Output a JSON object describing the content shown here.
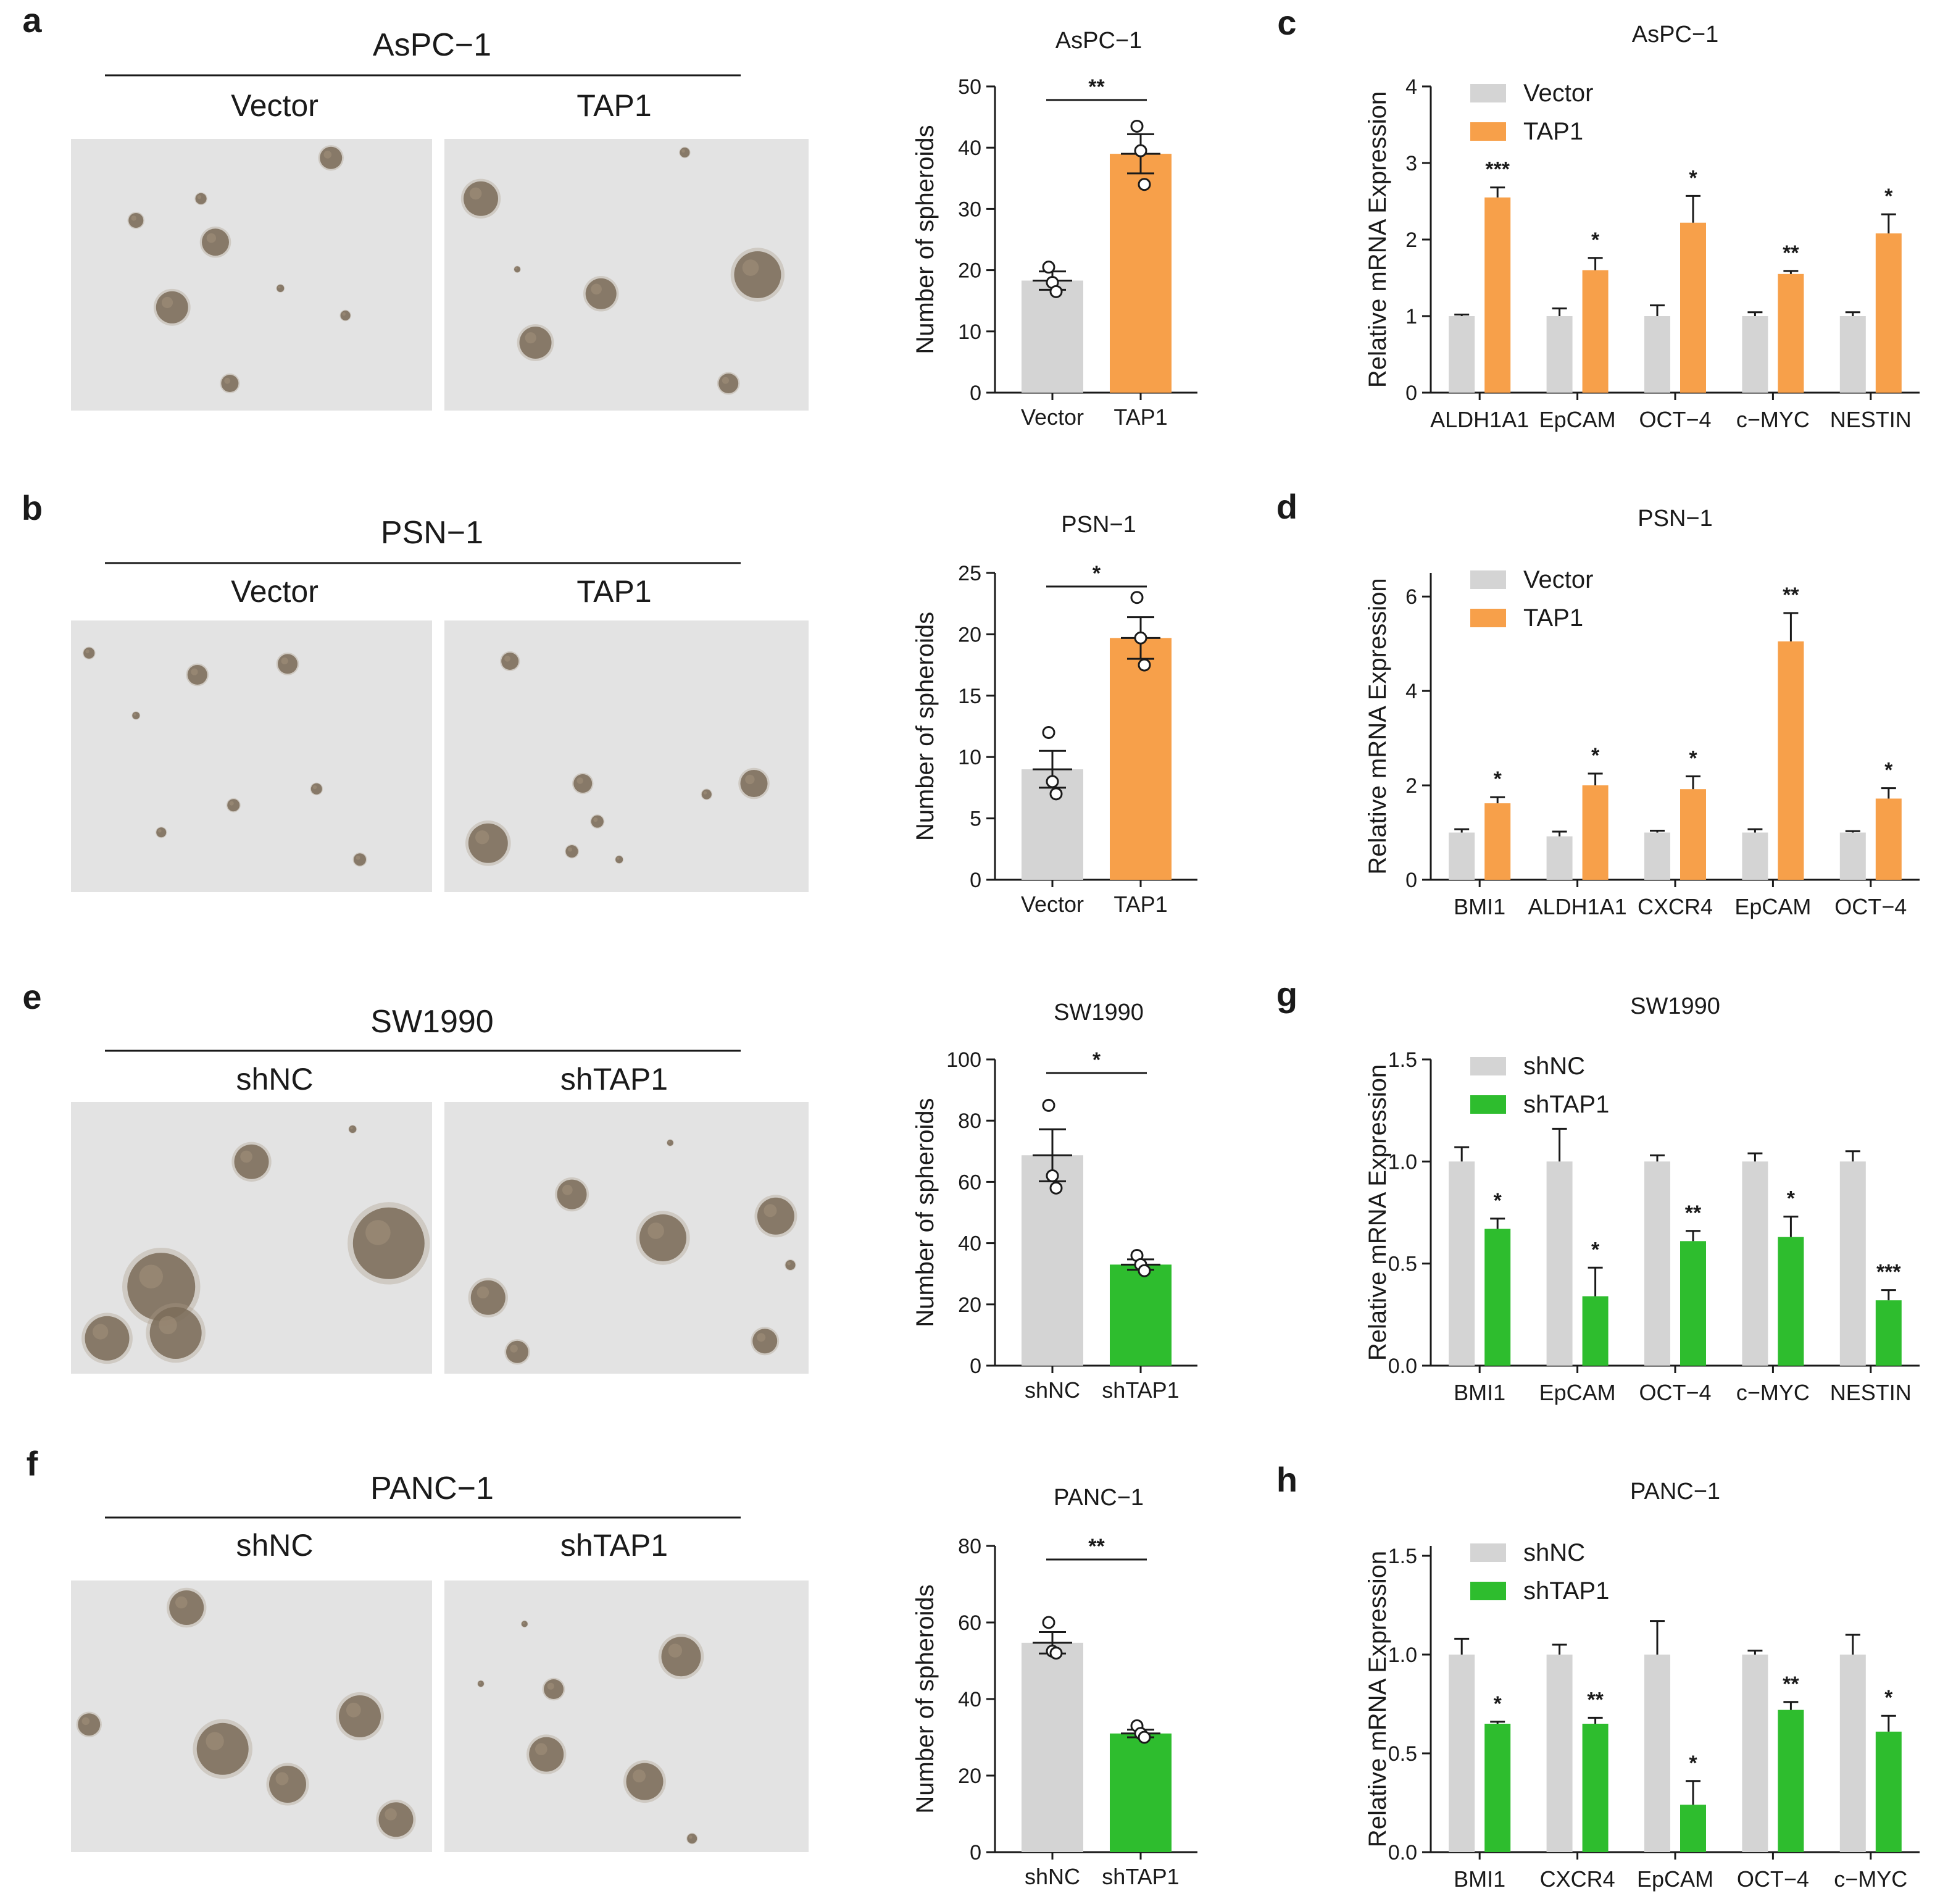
{
  "palette": {
    "control": "#d4d4d4",
    "orange": "#f7a04a",
    "green": "#2ebd2e",
    "axis": "#1a1a1a",
    "micro_bg": "#e3e3e3",
    "spheroid": "#7a6b58"
  },
  "panels": [
    {
      "letter": "a",
      "cell_line": "AsPC−1",
      "groups": [
        "Vector",
        "TAP1"
      ]
    },
    {
      "letter": "b",
      "cell_line": "PSN−1",
      "groups": [
        "Vector",
        "TAP1"
      ]
    },
    {
      "letter": "e",
      "cell_line": "SW1990",
      "groups": [
        "shNC",
        "shTAP1"
      ]
    },
    {
      "letter": "f",
      "cell_line": "PANC−1",
      "groups": [
        "shNC",
        "shTAP1"
      ]
    }
  ],
  "expression_letters": [
    "c",
    "d",
    "g",
    "h"
  ],
  "chart_data": [
    {
      "id": "spheroid-aspc1",
      "type": "bar",
      "title": "AsPC−1",
      "ylabel": "Number of spheroids",
      "categories": [
        "Vector",
        "TAP1"
      ],
      "values": [
        18.3,
        39.0
      ],
      "errors": [
        1.5,
        3.2
      ],
      "points": [
        [
          20.5,
          18.0,
          16.5
        ],
        [
          43.5,
          39.5,
          34.0
        ]
      ],
      "ylim": [
        0,
        50
      ],
      "yticks": [
        "0",
        "10",
        "20",
        "30",
        "40",
        "50"
      ],
      "ytick_values": [
        0,
        10,
        20,
        30,
        40,
        50
      ],
      "colors": [
        "#d4d4d4",
        "#f7a04a"
      ],
      "significance": "**"
    },
    {
      "id": "spheroid-psn1",
      "type": "bar",
      "title": "PSN−1",
      "ylabel": "Number of spheroids",
      "categories": [
        "Vector",
        "TAP1"
      ],
      "values": [
        9.0,
        19.7
      ],
      "errors": [
        1.5,
        1.7
      ],
      "points": [
        [
          12.0,
          8.0,
          7.0
        ],
        [
          23.0,
          19.7,
          17.5
        ]
      ],
      "ylim": [
        0,
        25
      ],
      "yticks": [
        "0",
        "5",
        "10",
        "15",
        "20",
        "25"
      ],
      "ytick_values": [
        0,
        5,
        10,
        15,
        20,
        25
      ],
      "colors": [
        "#d4d4d4",
        "#f7a04a"
      ],
      "significance": "*"
    },
    {
      "id": "spheroid-sw1990",
      "type": "bar",
      "title": "SW1990",
      "ylabel": "Number of spheroids",
      "categories": [
        "shNC",
        "shTAP1"
      ],
      "values": [
        68.7,
        33.0
      ],
      "errors": [
        8.5,
        1.7
      ],
      "points": [
        [
          85.0,
          62.0,
          58.0
        ],
        [
          36.0,
          33.0,
          31.0
        ]
      ],
      "ylim": [
        0,
        100
      ],
      "yticks": [
        "0",
        "20",
        "40",
        "60",
        "80",
        "100"
      ],
      "ytick_values": [
        0,
        20,
        40,
        60,
        80,
        100
      ],
      "colors": [
        "#d4d4d4",
        "#2ebd2e"
      ],
      "significance": "*"
    },
    {
      "id": "spheroid-panc1",
      "type": "bar",
      "title": "PANC−1",
      "ylabel": "Number of spheroids",
      "categories": [
        "shNC",
        "shTAP1"
      ],
      "values": [
        54.7,
        31.0
      ],
      "errors": [
        2.8,
        1.0
      ],
      "points": [
        [
          60.0,
          52.5,
          52.0
        ],
        [
          33.0,
          31.0,
          30.0
        ]
      ],
      "ylim": [
        0,
        80
      ],
      "yticks": [
        "0",
        "20",
        "40",
        "60",
        "80"
      ],
      "ytick_values": [
        0,
        20,
        40,
        60,
        80
      ],
      "colors": [
        "#d4d4d4",
        "#2ebd2e"
      ],
      "significance": "**"
    },
    {
      "id": "expression-aspc1",
      "type": "bar",
      "title": "AsPC−1",
      "ylabel": "Relative mRNA Expression",
      "categories": [
        "ALDH1A1",
        "EpCAM",
        "OCT−4",
        "c−MYC",
        "NESTIN"
      ],
      "series": [
        {
          "name": "Vector",
          "color": "#d4d4d4",
          "values": [
            1.0,
            1.0,
            1.0,
            1.0,
            1.0
          ],
          "errors": [
            0.02,
            0.1,
            0.14,
            0.05,
            0.05
          ]
        },
        {
          "name": "TAP1",
          "color": "#f7a04a",
          "values": [
            2.55,
            1.6,
            2.22,
            1.55,
            2.08
          ],
          "errors": [
            0.13,
            0.16,
            0.35,
            0.04,
            0.25
          ]
        }
      ],
      "significance": [
        "***",
        "*",
        "*",
        "**",
        "*"
      ],
      "ylim": [
        0,
        4
      ],
      "yticks": [
        "0",
        "1",
        "2",
        "3",
        "4"
      ],
      "ytick_values": [
        0,
        1,
        2,
        3,
        4
      ]
    },
    {
      "id": "expression-psn1",
      "type": "bar",
      "title": "PSN−1",
      "ylabel": "Relative mRNA Expression",
      "categories": [
        "BMI1",
        "ALDH1A1",
        "CXCR4",
        "EpCAM",
        "OCT−4"
      ],
      "series": [
        {
          "name": "Vector",
          "color": "#d4d4d4",
          "values": [
            1.0,
            0.92,
            1.0,
            1.0,
            1.0
          ],
          "errors": [
            0.07,
            0.1,
            0.04,
            0.07,
            0.03
          ]
        },
        {
          "name": "TAP1",
          "color": "#f7a04a",
          "values": [
            1.62,
            2.0,
            1.92,
            5.05,
            1.72
          ],
          "errors": [
            0.13,
            0.25,
            0.27,
            0.6,
            0.22
          ]
        }
      ],
      "significance": [
        "*",
        "*",
        "*",
        "**",
        "*"
      ],
      "ylim": [
        0,
        6.5
      ],
      "yticks": [
        "0",
        "2",
        "4",
        "6"
      ],
      "ytick_values": [
        0,
        2,
        4,
        6
      ]
    },
    {
      "id": "expression-sw1990",
      "type": "bar",
      "title": "SW1990",
      "ylabel": "Relative mRNA Expression",
      "categories": [
        "BMI1",
        "EpCAM",
        "OCT−4",
        "c−MYC",
        "NESTIN"
      ],
      "series": [
        {
          "name": "shNC",
          "color": "#d4d4d4",
          "values": [
            1.0,
            1.0,
            1.0,
            1.0,
            1.0
          ],
          "errors": [
            0.07,
            0.16,
            0.03,
            0.04,
            0.05
          ]
        },
        {
          "name": "shTAP1",
          "color": "#2ebd2e",
          "values": [
            0.67,
            0.34,
            0.61,
            0.63,
            0.32
          ],
          "errors": [
            0.05,
            0.14,
            0.05,
            0.1,
            0.05
          ]
        }
      ],
      "significance": [
        "*",
        "*",
        "**",
        "*",
        "***"
      ],
      "ylim": [
        0,
        1.5
      ],
      "yticks": [
        "0.0",
        "0.5",
        "1.0",
        "1.5"
      ],
      "ytick_values": [
        0,
        0.5,
        1.0,
        1.5
      ]
    },
    {
      "id": "expression-panc1",
      "type": "bar",
      "title": "PANC−1",
      "ylabel": "Relative mRNA Expression",
      "categories": [
        "BMI1",
        "CXCR4",
        "EpCAM",
        "OCT−4",
        "c−MYC"
      ],
      "series": [
        {
          "name": "shNC",
          "color": "#d4d4d4",
          "values": [
            1.0,
            1.0,
            1.0,
            1.0,
            1.0
          ],
          "errors": [
            0.08,
            0.05,
            0.17,
            0.02,
            0.1
          ]
        },
        {
          "name": "shTAP1",
          "color": "#2ebd2e",
          "values": [
            0.65,
            0.65,
            0.24,
            0.72,
            0.61
          ],
          "errors": [
            0.01,
            0.03,
            0.12,
            0.04,
            0.08
          ]
        }
      ],
      "significance": [
        "*",
        "**",
        "*",
        "**",
        "*"
      ],
      "ylim": [
        0,
        1.55
      ],
      "yticks": [
        "0.0",
        "0.5",
        "1.0",
        "1.5"
      ],
      "ytick_values": [
        0,
        0.5,
        1.0,
        1.5
      ]
    }
  ]
}
